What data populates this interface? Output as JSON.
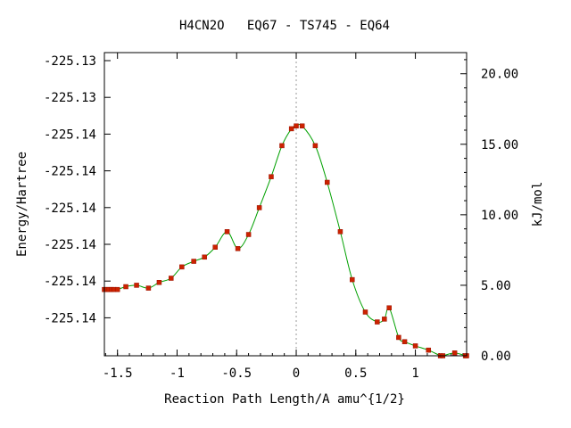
{
  "chart_data": {
    "type": "line",
    "title": "H4CN2O   EQ67 - TS745 - EQ64",
    "xlabel": "Reaction Path Length/A amu^{1/2}",
    "ylabel_left": "Energy/Hartree",
    "ylabel_right": "kJ/mol",
    "x_ticks": [
      {
        "v": -1.5,
        "label": "-1.5"
      },
      {
        "v": -1.0,
        "label": "-1"
      },
      {
        "v": -0.5,
        "label": "-0.5"
      },
      {
        "v": 0.0,
        "label": "0"
      },
      {
        "v": 0.5,
        "label": "0.5"
      },
      {
        "v": 1.0,
        "label": "1"
      }
    ],
    "y_left_tick_labels": [
      "-225.13",
      "-225.13",
      "-225.14",
      "-225.14",
      "-225.14",
      "-225.14",
      "-225.14",
      "-225.14"
    ],
    "y_right_ticks": [
      {
        "v": 0,
        "label": "0.00"
      },
      {
        "v": 5,
        "label": "5.00"
      },
      {
        "v": 10,
        "label": "10.00"
      },
      {
        "v": 15,
        "label": "15.00"
      },
      {
        "v": 20,
        "label": "20.00"
      }
    ],
    "xlim": [
      -1.61,
      1.43
    ],
    "ylim_kjmol": [
      0,
      21.5
    ],
    "ts_line_x": 0.0,
    "line_color": "#00a000",
    "marker_color": "#cc2200",
    "series": [
      {
        "x": [
          -1.61,
          -1.59,
          -1.57,
          -1.55,
          -1.53,
          -1.5,
          -1.43,
          -1.34,
          -1.24,
          -1.15,
          -1.05,
          -0.96,
          -0.86,
          -0.77,
          -0.68,
          -0.58,
          -0.49,
          -0.4,
          -0.31,
          -0.21,
          -0.12,
          -0.04,
          0.0,
          0.05,
          0.16,
          0.26,
          0.37,
          0.47,
          0.58,
          0.68,
          0.74,
          0.78,
          0.86,
          0.91,
          1.0,
          1.11,
          1.21,
          1.23,
          1.33,
          1.42,
          1.43
        ],
        "y": [
          4.7,
          4.7,
          4.7,
          4.7,
          4.7,
          4.7,
          4.9,
          5.0,
          4.8,
          5.2,
          5.5,
          6.3,
          6.7,
          7.0,
          7.7,
          8.8,
          7.6,
          8.6,
          10.5,
          12.7,
          14.9,
          16.1,
          16.3,
          16.3,
          14.9,
          12.3,
          8.8,
          5.4,
          3.1,
          2.4,
          2.6,
          3.4,
          1.3,
          1.0,
          0.7,
          0.4,
          0.0,
          0.0,
          0.2,
          0.0,
          0.0
        ]
      }
    ]
  }
}
